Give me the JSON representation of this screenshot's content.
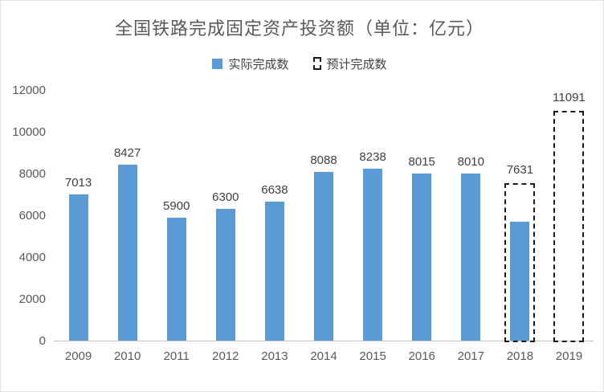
{
  "chart_data": {
    "type": "bar",
    "title": "全国铁路完成固定资产投资额（单位：亿元）",
    "categories": [
      "2009",
      "2010",
      "2011",
      "2012",
      "2013",
      "2014",
      "2015",
      "2016",
      "2017",
      "2018",
      "2019"
    ],
    "series": [
      {
        "name": "实际完成数",
        "values": [
          7013,
          8427,
          5900,
          6300,
          6638,
          8088,
          8238,
          8015,
          8010,
          5700,
          null
        ]
      },
      {
        "name": "预计完成数",
        "values": [
          null,
          null,
          null,
          null,
          null,
          null,
          null,
          null,
          null,
          7631,
          11091
        ]
      }
    ],
    "data_labels": [
      "7013",
      "8427",
      "5900",
      "6300",
      "6638",
      "8088",
      "8238",
      "8015",
      "8010",
      "7631",
      "11091"
    ],
    "ylim": [
      0,
      12000
    ],
    "ytick_step": 2000,
    "yticks": [
      "0",
      "2000",
      "4000",
      "6000",
      "8000",
      "10000",
      "12000"
    ],
    "grid": false,
    "legend_position": "top",
    "colors": {
      "actual_bar": "#5b9bd5",
      "expected_outline": "#1a1a1a",
      "title_text": "#595959",
      "axis_text": "#595959",
      "label_text": "#404040"
    }
  }
}
